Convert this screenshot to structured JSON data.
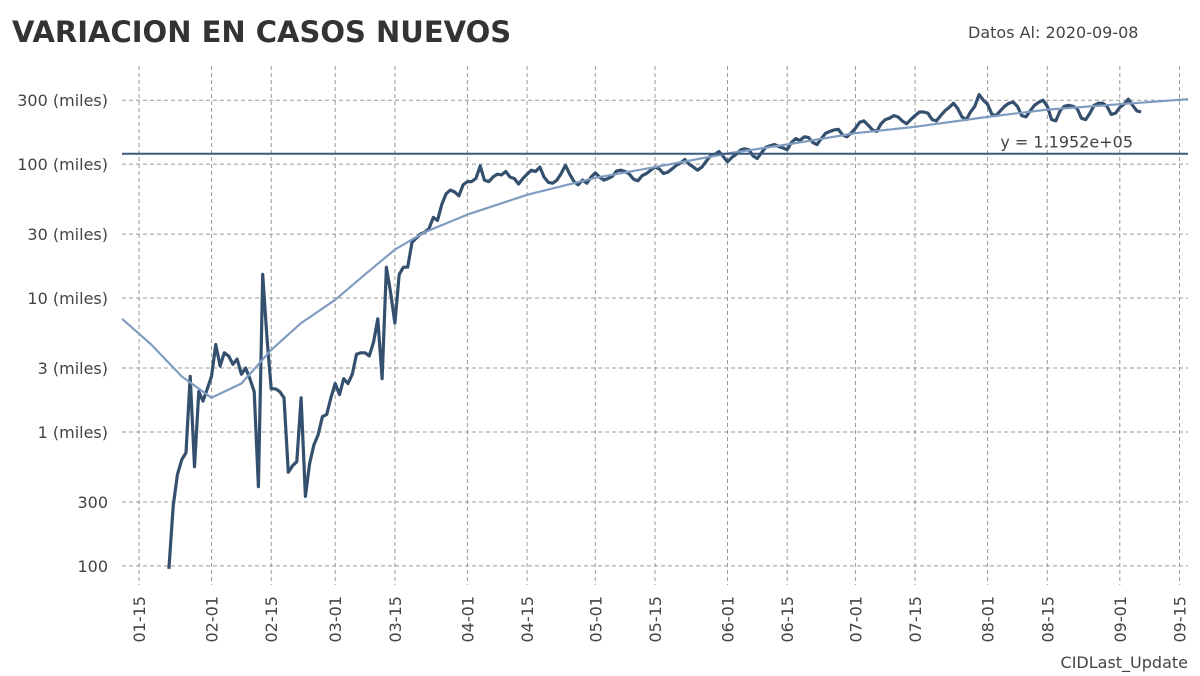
{
  "chart_data": {
    "type": "line",
    "title": "VARIACION EN CASOS NUEVOS",
    "subtitle": "Datos Al: 2020-09-08",
    "footer": "CIDLast_Update",
    "log_y": true,
    "grid": true,
    "xlim": [
      "01-11",
      "09-17"
    ],
    "xticks": [
      "01-15",
      "02-01",
      "02-15",
      "03-01",
      "03-15",
      "04-01",
      "04-15",
      "05-01",
      "05-15",
      "06-01",
      "06-15",
      "07-01",
      "07-15",
      "08-01",
      "08-15",
      "09-01",
      "09-15"
    ],
    "ylim": [
      72,
      540000
    ],
    "yticks": [
      100,
      300,
      {
        "value": 1000,
        "label": "1 (miles)"
      },
      {
        "value": 3000,
        "label": "3 (miles)"
      },
      {
        "value": 10000,
        "label": "10 (miles)"
      },
      {
        "value": 30000,
        "label": "30 (miles)"
      },
      {
        "value": 100000,
        "label": "100 (miles)"
      },
      {
        "value": 300000,
        "label": "300 (miles)"
      }
    ],
    "hline": {
      "value": 119520,
      "label": "y = 1.1952e+05",
      "color": "#3c5a80"
    },
    "x": [
      "01-22",
      "01-23",
      "01-24",
      "01-25",
      "01-26",
      "01-27",
      "01-28",
      "01-29",
      "01-30",
      "01-31",
      "02-01",
      "02-02",
      "02-03",
      "02-04",
      "02-05",
      "02-06",
      "02-07",
      "02-08",
      "02-09",
      "02-10",
      "02-11",
      "02-12",
      "02-13",
      "02-14",
      "02-15",
      "02-16",
      "02-17",
      "02-18",
      "02-19",
      "02-20",
      "02-21",
      "02-22",
      "02-23",
      "02-24",
      "02-25",
      "02-26",
      "02-27",
      "02-28",
      "02-29",
      "03-01",
      "03-02",
      "03-03",
      "03-04",
      "03-05",
      "03-06",
      "03-07",
      "03-08",
      "03-09",
      "03-10",
      "03-11",
      "03-12",
      "03-13",
      "03-14",
      "03-15",
      "03-16",
      "03-17",
      "03-18",
      "03-19",
      "03-20",
      "03-21",
      "03-22",
      "03-23",
      "03-24",
      "03-25",
      "03-26",
      "03-27",
      "03-28",
      "03-29",
      "03-30",
      "03-31",
      "04-01",
      "04-02",
      "04-03",
      "04-04",
      "04-05",
      "04-06",
      "04-07",
      "04-08",
      "04-09",
      "04-10",
      "04-11",
      "04-12",
      "04-13",
      "04-14",
      "04-15",
      "04-16",
      "04-17",
      "04-18",
      "04-19",
      "04-20",
      "04-21",
      "04-22",
      "04-23",
      "04-24",
      "04-25",
      "04-26",
      "04-27",
      "04-28",
      "04-29",
      "04-30",
      "05-01",
      "05-02",
      "05-03",
      "05-04",
      "05-05",
      "05-06",
      "05-07",
      "05-08",
      "05-09",
      "05-10",
      "05-11",
      "05-12",
      "05-13",
      "05-14",
      "05-15",
      "05-16",
      "05-17",
      "05-18",
      "05-19",
      "05-20",
      "05-21",
      "05-22",
      "05-23",
      "05-24",
      "05-25",
      "05-26",
      "05-27",
      "05-28",
      "05-29",
      "05-30",
      "05-31",
      "06-01",
      "06-02",
      "06-03",
      "06-04",
      "06-05",
      "06-06",
      "06-07",
      "06-08",
      "06-09",
      "06-10",
      "06-11",
      "06-12",
      "06-13",
      "06-14",
      "06-15",
      "06-16",
      "06-17",
      "06-18",
      "06-19",
      "06-20",
      "06-21",
      "06-22",
      "06-23",
      "06-24",
      "06-25",
      "06-26",
      "06-27",
      "06-28",
      "06-29",
      "06-30",
      "07-01",
      "07-02",
      "07-03",
      "07-04",
      "07-05",
      "07-06",
      "07-07",
      "07-08",
      "07-09",
      "07-10",
      "07-11",
      "07-12",
      "07-13",
      "07-14",
      "07-15",
      "07-16",
      "07-17",
      "07-18",
      "07-19",
      "07-20",
      "07-21",
      "07-22",
      "07-23",
      "07-24",
      "07-25",
      "07-26",
      "07-27",
      "07-28",
      "07-29",
      "07-30",
      "07-31",
      "08-01",
      "08-02",
      "08-03",
      "08-04",
      "08-05",
      "08-06",
      "08-07",
      "08-08",
      "08-09",
      "08-10",
      "08-11",
      "08-12",
      "08-13",
      "08-14",
      "08-15",
      "08-16",
      "08-17",
      "08-18",
      "08-19",
      "08-20",
      "08-21",
      "08-22",
      "08-23",
      "08-24",
      "08-25",
      "08-26",
      "08-27",
      "08-28",
      "08-29",
      "08-30",
      "08-31",
      "09-01",
      "09-02",
      "09-03",
      "09-04",
      "09-05",
      "09-06"
    ],
    "series": [
      {
        "color": "#34506e",
        "values": [
          95,
          280,
          480,
          620,
          700,
          2600,
          550,
          2000,
          1700,
          2100,
          2600,
          4500,
          3100,
          3900,
          3700,
          3200,
          3500,
          2700,
          3000,
          2500,
          2000,
          390,
          15000,
          5000,
          2100,
          2100,
          2000,
          1800,
          500,
          560,
          600,
          1800,
          330,
          580,
          800,
          950,
          1300,
          1350,
          1800,
          2300,
          1900,
          2500,
          2300,
          2700,
          3800,
          3900,
          3900,
          3700,
          4700,
          7000,
          2500,
          17000,
          11000,
          6500,
          15000,
          17000,
          17000,
          26000,
          28000,
          30000,
          31000,
          33000,
          40000,
          38000,
          50000,
          60000,
          64000,
          62000,
          58000,
          70000,
          74000,
          74000,
          78000,
          97000,
          76000,
          74000,
          80000,
          84000,
          83000,
          88000,
          80000,
          78000,
          71000,
          78000,
          84000,
          90000,
          88000,
          95000,
          80000,
          73000,
          72000,
          76000,
          85000,
          98000,
          84000,
          74000,
          70000,
          76000,
          72000,
          80000,
          86000,
          80000,
          76000,
          78000,
          81000,
          89000,
          90000,
          88000,
          84000,
          77000,
          75000,
          82000,
          85000,
          90000,
          95000,
          92000,
          85000,
          87000,
          92000,
          98000,
          102000,
          108000,
          100000,
          95000,
          90000,
          95000,
          105000,
          115000,
          118000,
          124000,
          114000,
          104000,
          112000,
          118000,
          127000,
          130000,
          128000,
          115000,
          110000,
          122000,
          134000,
          137000,
          140000,
          135000,
          132000,
          128000,
          145000,
          155000,
          150000,
          160000,
          158000,
          145000,
          140000,
          155000,
          170000,
          175000,
          180000,
          182000,
          165000,
          160000,
          170000,
          185000,
          205000,
          210000,
          195000,
          180000,
          175000,
          200000,
          215000,
          220000,
          230000,
          225000,
          210000,
          200000,
          215000,
          230000,
          245000,
          245000,
          240000,
          215000,
          210000,
          230000,
          250000,
          265000,
          285000,
          260000,
          225000,
          215000,
          245000,
          270000,
          330000,
          300000,
          280000,
          235000,
          230000,
          250000,
          270000,
          285000,
          290000,
          270000,
          230000,
          225000,
          250000,
          275000,
          290000,
          300000,
          270000,
          215000,
          210000,
          250000,
          270000,
          275000,
          270000,
          260000,
          220000,
          215000,
          240000,
          275000,
          285000,
          285000,
          270000,
          235000,
          240000,
          265000,
          280000,
          305000,
          275000,
          250000,
          245000
        ]
      },
      {
        "color": "#7f9cc0",
        "x": [
          "01-11",
          "01-18",
          "01-25",
          "02-01",
          "02-08",
          "02-15",
          "02-22",
          "03-01",
          "03-08",
          "03-15",
          "03-22",
          "04-01",
          "04-15",
          "05-01",
          "05-15",
          "06-01",
          "06-15",
          "07-01",
          "07-15",
          "08-01",
          "08-15",
          "09-01",
          "09-17"
        ],
        "values": [
          7000,
          4450,
          2600,
          1800,
          2300,
          4100,
          6500,
          9700,
          15000,
          23000,
          31000,
          42000,
          59000,
          79000,
          95000,
          120000,
          140000,
          170000,
          190000,
          225000,
          255000,
          280000,
          305000
        ]
      }
    ]
  }
}
